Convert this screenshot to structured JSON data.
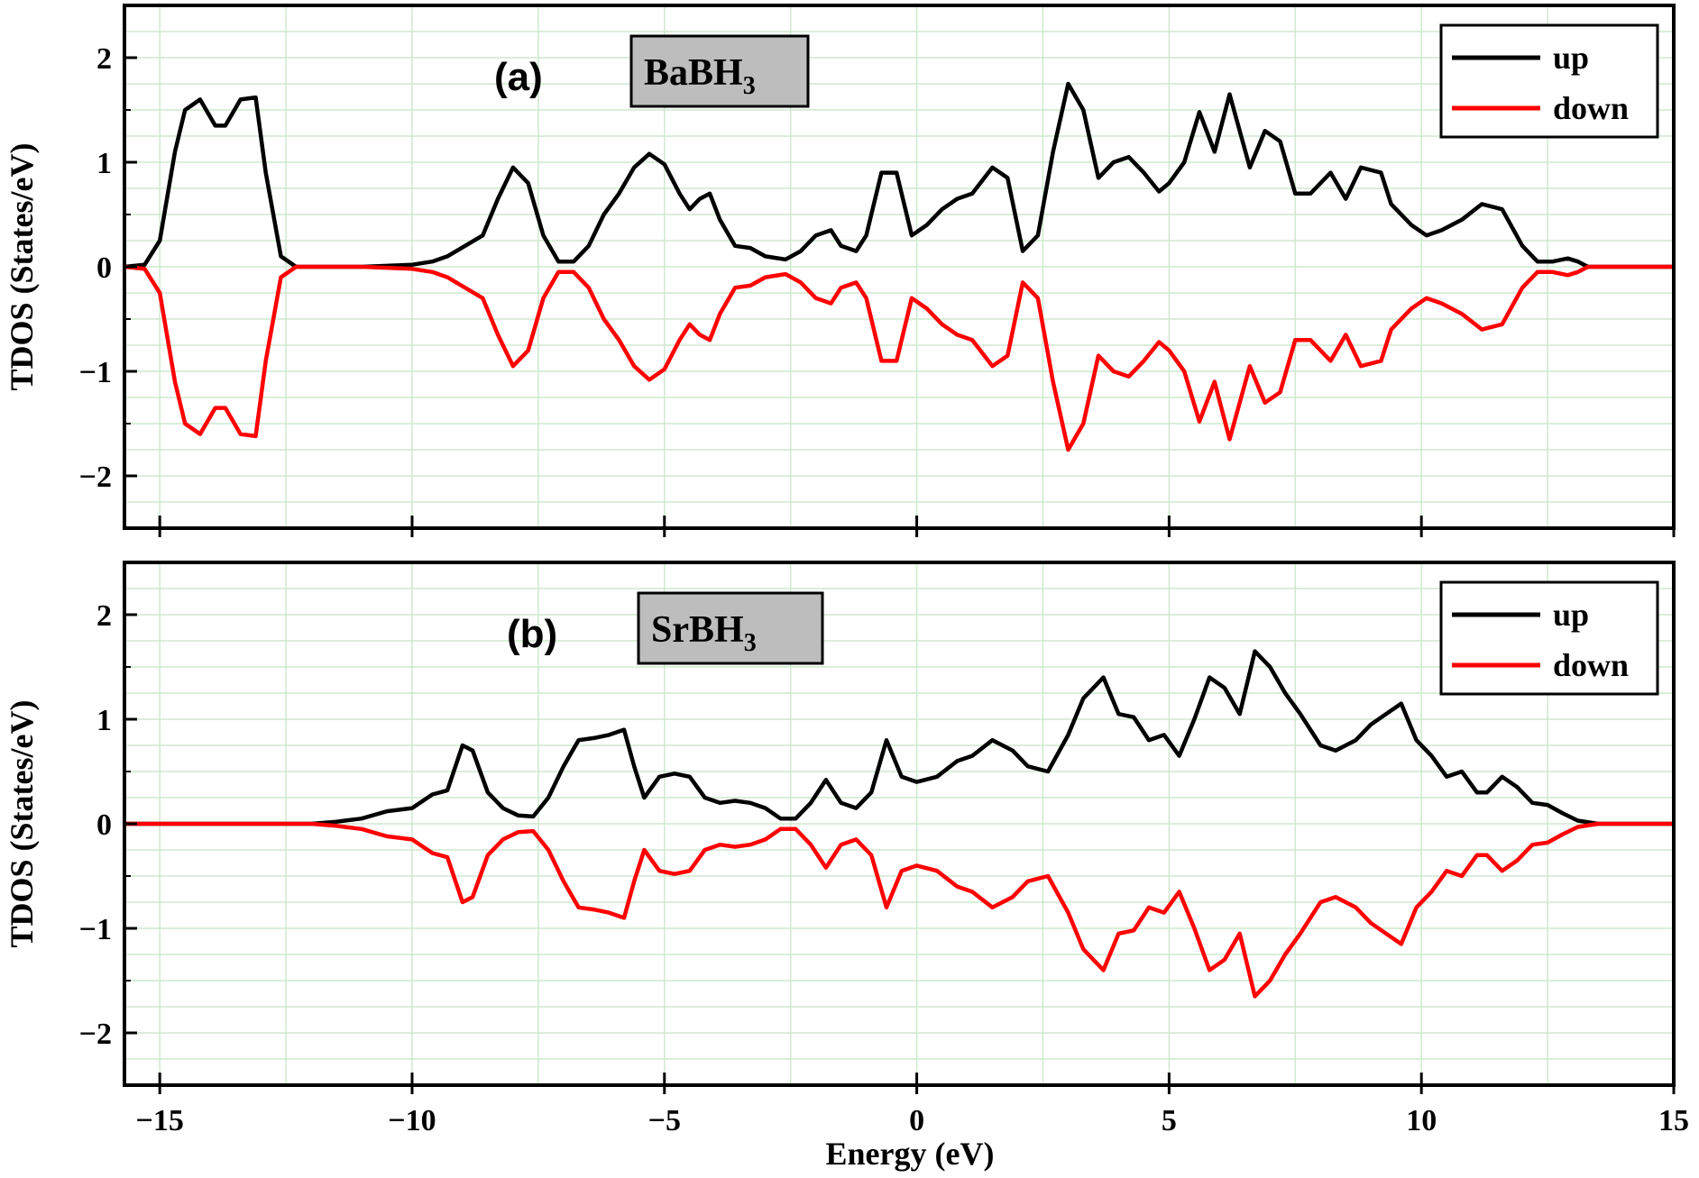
{
  "chart_data": [
    {
      "type": "line",
      "panel_label": "(a)",
      "compound": {
        "base": "BaBH",
        "subscript": "3"
      },
      "xlabel": "Energy (eV)",
      "ylabel": "TDOS (States/eV)",
      "xlim": [
        -15.7,
        15
      ],
      "ylim": [
        -2.5,
        2.5
      ],
      "xticks": [
        -15,
        -10,
        -5,
        0,
        5,
        10,
        15
      ],
      "yticks": [
        -2,
        -1,
        0,
        1,
        2
      ],
      "grid": true,
      "legend": "top-right",
      "series": [
        {
          "name": "up",
          "color": "#000000",
          "x": [
            -15.7,
            -15.3,
            -15.0,
            -14.7,
            -14.5,
            -14.2,
            -13.9,
            -13.7,
            -13.4,
            -13.1,
            -12.9,
            -12.6,
            -12.3,
            -12.0,
            -11.0,
            -10.0,
            -9.6,
            -9.3,
            -8.6,
            -8.3,
            -8.0,
            -7.7,
            -7.4,
            -7.1,
            -6.8,
            -6.5,
            -6.2,
            -5.9,
            -5.6,
            -5.3,
            -5.0,
            -4.7,
            -4.5,
            -4.3,
            -4.1,
            -3.9,
            -3.6,
            -3.3,
            -3.0,
            -2.6,
            -2.3,
            -2.0,
            -1.7,
            -1.5,
            -1.2,
            -1.0,
            -0.7,
            -0.4,
            -0.1,
            0.2,
            0.5,
            0.8,
            1.1,
            1.5,
            1.8,
            2.1,
            2.4,
            2.7,
            3.0,
            3.3,
            3.6,
            3.9,
            4.2,
            4.5,
            4.8,
            5.0,
            5.3,
            5.6,
            5.9,
            6.2,
            6.6,
            6.9,
            7.2,
            7.5,
            7.8,
            8.2,
            8.5,
            8.8,
            9.2,
            9.4,
            9.8,
            10.1,
            10.4,
            10.8,
            11.2,
            11.6,
            12.0,
            12.3,
            12.6,
            12.9,
            13.1,
            13.3,
            13.6,
            14.0,
            15.0
          ],
          "y": [
            0,
            0.02,
            0.25,
            1.1,
            1.5,
            1.6,
            1.35,
            1.35,
            1.6,
            1.62,
            0.9,
            0.1,
            0,
            0,
            0,
            0.02,
            0.05,
            0.1,
            0.3,
            0.65,
            0.95,
            0.8,
            0.3,
            0.05,
            0.05,
            0.2,
            0.5,
            0.7,
            0.95,
            1.08,
            0.98,
            0.7,
            0.55,
            0.65,
            0.7,
            0.45,
            0.2,
            0.18,
            0.1,
            0.07,
            0.15,
            0.3,
            0.35,
            0.2,
            0.15,
            0.3,
            0.9,
            0.9,
            0.3,
            0.4,
            0.55,
            0.65,
            0.7,
            0.95,
            0.85,
            0.15,
            0.3,
            1.1,
            1.75,
            1.5,
            0.85,
            1.0,
            1.05,
            0.9,
            0.72,
            0.8,
            1.0,
            1.48,
            1.1,
            1.65,
            0.95,
            1.3,
            1.2,
            0.7,
            0.7,
            0.9,
            0.65,
            0.95,
            0.9,
            0.6,
            0.4,
            0.3,
            0.35,
            0.45,
            0.6,
            0.55,
            0.2,
            0.05,
            0.05,
            0.08,
            0.05,
            0,
            0,
            0,
            0
          ]
        },
        {
          "name": "down",
          "color": "#ff0000",
          "x": [
            -15.7,
            -15.3,
            -15.0,
            -14.7,
            -14.5,
            -14.2,
            -13.9,
            -13.7,
            -13.4,
            -13.1,
            -12.9,
            -12.6,
            -12.3,
            -12.0,
            -11.0,
            -10.0,
            -9.6,
            -9.3,
            -8.6,
            -8.3,
            -8.0,
            -7.7,
            -7.4,
            -7.1,
            -6.8,
            -6.5,
            -6.2,
            -5.9,
            -5.6,
            -5.3,
            -5.0,
            -4.7,
            -4.5,
            -4.3,
            -4.1,
            -3.9,
            -3.6,
            -3.3,
            -3.0,
            -2.6,
            -2.3,
            -2.0,
            -1.7,
            -1.5,
            -1.2,
            -1.0,
            -0.7,
            -0.4,
            -0.1,
            0.2,
            0.5,
            0.8,
            1.1,
            1.5,
            1.8,
            2.1,
            2.4,
            2.7,
            3.0,
            3.3,
            3.6,
            3.9,
            4.2,
            4.5,
            4.8,
            5.0,
            5.3,
            5.6,
            5.9,
            6.2,
            6.6,
            6.9,
            7.2,
            7.5,
            7.8,
            8.2,
            8.5,
            8.8,
            9.2,
            9.4,
            9.8,
            10.1,
            10.4,
            10.8,
            11.2,
            11.6,
            12.0,
            12.3,
            12.6,
            12.9,
            13.1,
            13.3,
            13.6,
            14.0,
            15.0
          ],
          "y": [
            0,
            -0.02,
            -0.25,
            -1.1,
            -1.5,
            -1.6,
            -1.35,
            -1.35,
            -1.6,
            -1.62,
            -0.9,
            -0.1,
            0,
            0,
            0,
            -0.02,
            -0.05,
            -0.1,
            -0.3,
            -0.65,
            -0.95,
            -0.8,
            -0.3,
            -0.05,
            -0.05,
            -0.2,
            -0.5,
            -0.7,
            -0.95,
            -1.08,
            -0.98,
            -0.7,
            -0.55,
            -0.65,
            -0.7,
            -0.45,
            -0.2,
            -0.18,
            -0.1,
            -0.07,
            -0.15,
            -0.3,
            -0.35,
            -0.2,
            -0.15,
            -0.3,
            -0.9,
            -0.9,
            -0.3,
            -0.4,
            -0.55,
            -0.65,
            -0.7,
            -0.95,
            -0.85,
            -0.15,
            -0.3,
            -1.1,
            -1.75,
            -1.5,
            -0.85,
            -1.0,
            -1.05,
            -0.9,
            -0.72,
            -0.8,
            -1.0,
            -1.48,
            -1.1,
            -1.65,
            -0.95,
            -1.3,
            -1.2,
            -0.7,
            -0.7,
            -0.9,
            -0.65,
            -0.95,
            -0.9,
            -0.6,
            -0.4,
            -0.3,
            -0.35,
            -0.45,
            -0.6,
            -0.55,
            -0.2,
            -0.05,
            -0.05,
            -0.08,
            -0.05,
            0,
            0,
            0,
            0
          ]
        }
      ]
    },
    {
      "type": "line",
      "panel_label": "(b)",
      "compound": {
        "base": "SrBH",
        "subscript": "3"
      },
      "xlabel": "Energy (eV)",
      "ylabel": "TDOS (States/eV)",
      "xlim": [
        -15.7,
        15
      ],
      "ylim": [
        -2.5,
        2.5
      ],
      "xticks": [
        -15,
        -10,
        -5,
        0,
        5,
        10,
        15
      ],
      "yticks": [
        -2,
        -1,
        0,
        1,
        2
      ],
      "grid": true,
      "legend": "top-right",
      "series": [
        {
          "name": "up",
          "color": "#000000",
          "x": [
            -15.7,
            -12.0,
            -11.5,
            -11.0,
            -10.5,
            -10.0,
            -9.6,
            -9.3,
            -9.0,
            -8.8,
            -8.5,
            -8.2,
            -7.9,
            -7.6,
            -7.3,
            -7.0,
            -6.7,
            -6.4,
            -6.1,
            -5.8,
            -5.6,
            -5.4,
            -5.1,
            -4.8,
            -4.5,
            -4.2,
            -3.9,
            -3.6,
            -3.3,
            -3.0,
            -2.7,
            -2.4,
            -2.1,
            -1.8,
            -1.5,
            -1.2,
            -0.9,
            -0.6,
            -0.3,
            0.0,
            0.4,
            0.8,
            1.1,
            1.5,
            1.9,
            2.2,
            2.6,
            3.0,
            3.3,
            3.7,
            4.0,
            4.3,
            4.6,
            4.9,
            5.2,
            5.5,
            5.8,
            6.1,
            6.4,
            6.7,
            7.0,
            7.3,
            7.6,
            8.0,
            8.3,
            8.7,
            9.0,
            9.3,
            9.6,
            9.9,
            10.2,
            10.5,
            10.8,
            11.1,
            11.3,
            11.6,
            11.9,
            12.2,
            12.5,
            12.8,
            13.1,
            13.5,
            14.0,
            15.0
          ],
          "y": [
            0,
            0,
            0.02,
            0.05,
            0.12,
            0.15,
            0.28,
            0.32,
            0.75,
            0.7,
            0.3,
            0.15,
            0.08,
            0.07,
            0.25,
            0.55,
            0.8,
            0.82,
            0.85,
            0.9,
            0.55,
            0.25,
            0.45,
            0.48,
            0.45,
            0.25,
            0.2,
            0.22,
            0.2,
            0.15,
            0.05,
            0.05,
            0.2,
            0.42,
            0.2,
            0.15,
            0.3,
            0.8,
            0.45,
            0.4,
            0.45,
            0.6,
            0.65,
            0.8,
            0.7,
            0.55,
            0.5,
            0.85,
            1.2,
            1.4,
            1.05,
            1.02,
            0.8,
            0.85,
            0.65,
            1.0,
            1.4,
            1.3,
            1.05,
            1.65,
            1.5,
            1.25,
            1.05,
            0.75,
            0.7,
            0.8,
            0.95,
            1.05,
            1.15,
            0.8,
            0.65,
            0.45,
            0.5,
            0.3,
            0.3,
            0.45,
            0.35,
            0.2,
            0.18,
            0.1,
            0.03,
            0,
            0,
            0
          ]
        },
        {
          "name": "down",
          "color": "#ff0000",
          "x": [
            -15.7,
            -12.0,
            -11.5,
            -11.0,
            -10.5,
            -10.0,
            -9.6,
            -9.3,
            -9.0,
            -8.8,
            -8.5,
            -8.2,
            -7.9,
            -7.6,
            -7.3,
            -7.0,
            -6.7,
            -6.4,
            -6.1,
            -5.8,
            -5.6,
            -5.4,
            -5.1,
            -4.8,
            -4.5,
            -4.2,
            -3.9,
            -3.6,
            -3.3,
            -3.0,
            -2.7,
            -2.4,
            -2.1,
            -1.8,
            -1.5,
            -1.2,
            -0.9,
            -0.6,
            -0.3,
            0.0,
            0.4,
            0.8,
            1.1,
            1.5,
            1.9,
            2.2,
            2.6,
            3.0,
            3.3,
            3.7,
            4.0,
            4.3,
            4.6,
            4.9,
            5.2,
            5.5,
            5.8,
            6.1,
            6.4,
            6.7,
            7.0,
            7.3,
            7.6,
            8.0,
            8.3,
            8.7,
            9.0,
            9.3,
            9.6,
            9.9,
            10.2,
            10.5,
            10.8,
            11.1,
            11.3,
            11.6,
            11.9,
            12.2,
            12.5,
            12.8,
            13.1,
            13.5,
            14.0,
            15.0
          ],
          "y": [
            0,
            0,
            -0.02,
            -0.05,
            -0.12,
            -0.15,
            -0.28,
            -0.32,
            -0.75,
            -0.7,
            -0.3,
            -0.15,
            -0.08,
            -0.07,
            -0.25,
            -0.55,
            -0.8,
            -0.82,
            -0.85,
            -0.9,
            -0.55,
            -0.25,
            -0.45,
            -0.48,
            -0.45,
            -0.25,
            -0.2,
            -0.22,
            -0.2,
            -0.15,
            -0.05,
            -0.05,
            -0.2,
            -0.42,
            -0.2,
            -0.15,
            -0.3,
            -0.8,
            -0.45,
            -0.4,
            -0.45,
            -0.6,
            -0.65,
            -0.8,
            -0.7,
            -0.55,
            -0.5,
            -0.85,
            -1.2,
            -1.4,
            -1.05,
            -1.02,
            -0.8,
            -0.85,
            -0.65,
            -1.0,
            -1.4,
            -1.3,
            -1.05,
            -1.65,
            -1.5,
            -1.25,
            -1.05,
            -0.75,
            -0.7,
            -0.8,
            -0.95,
            -1.05,
            -1.15,
            -0.8,
            -0.65,
            -0.45,
            -0.5,
            -0.3,
            -0.3,
            -0.45,
            -0.35,
            -0.2,
            -0.18,
            -0.1,
            -0.03,
            0,
            0,
            0
          ]
        }
      ]
    }
  ]
}
